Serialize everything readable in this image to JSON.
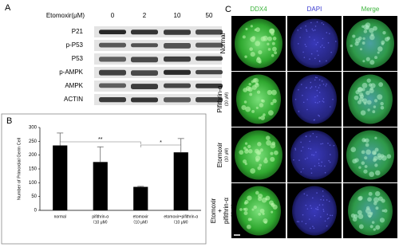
{
  "panel_a": {
    "label": "A",
    "treatment": "Etomoxir(μM)",
    "doses": [
      "0",
      "2",
      "10",
      "50"
    ],
    "proteins": [
      "P21",
      "p-P53",
      "P53",
      "p-AMPK",
      "AMPK",
      "ACTIN"
    ]
  },
  "chart_data": {
    "type": "bar",
    "label": "B",
    "y_label": "Number of Primordial Germ Cell",
    "categories": [
      "normal",
      "pifithrin-α",
      "etomoxir",
      "etomoxir+pifithrin-α"
    ],
    "category_notes": [
      null,
      "（10 μM）",
      "（10 μM）",
      "（10 μM）"
    ],
    "values": [
      235,
      175,
      85,
      210
    ],
    "errors": [
      45,
      55,
      2,
      50
    ],
    "color": "#000000",
    "ylim": [
      0,
      300
    ],
    "yticks": [
      0,
      50,
      100,
      150,
      200,
      250,
      300
    ],
    "significance": [
      "**",
      "*"
    ]
  },
  "panel_c": {
    "label": "C",
    "columns": [
      {
        "name": "DDX4",
        "color": "#3cb43c"
      },
      {
        "name": "DAPI",
        "color": "#3a3ad0"
      },
      {
        "name": "Merge",
        "color": "#3cb43c"
      }
    ],
    "rows": [
      {
        "lines": [
          "Normal"
        ],
        "note": null
      },
      {
        "lines": [
          "Pifithrin-α"
        ],
        "note": "(10 μM)"
      },
      {
        "lines": [
          "Etomoxir"
        ],
        "note": "(10 μM)"
      },
      {
        "lines": [
          "Etomoxir",
          "+",
          "pifithrin-α"
        ],
        "note": "(10 μM)"
      }
    ]
  }
}
